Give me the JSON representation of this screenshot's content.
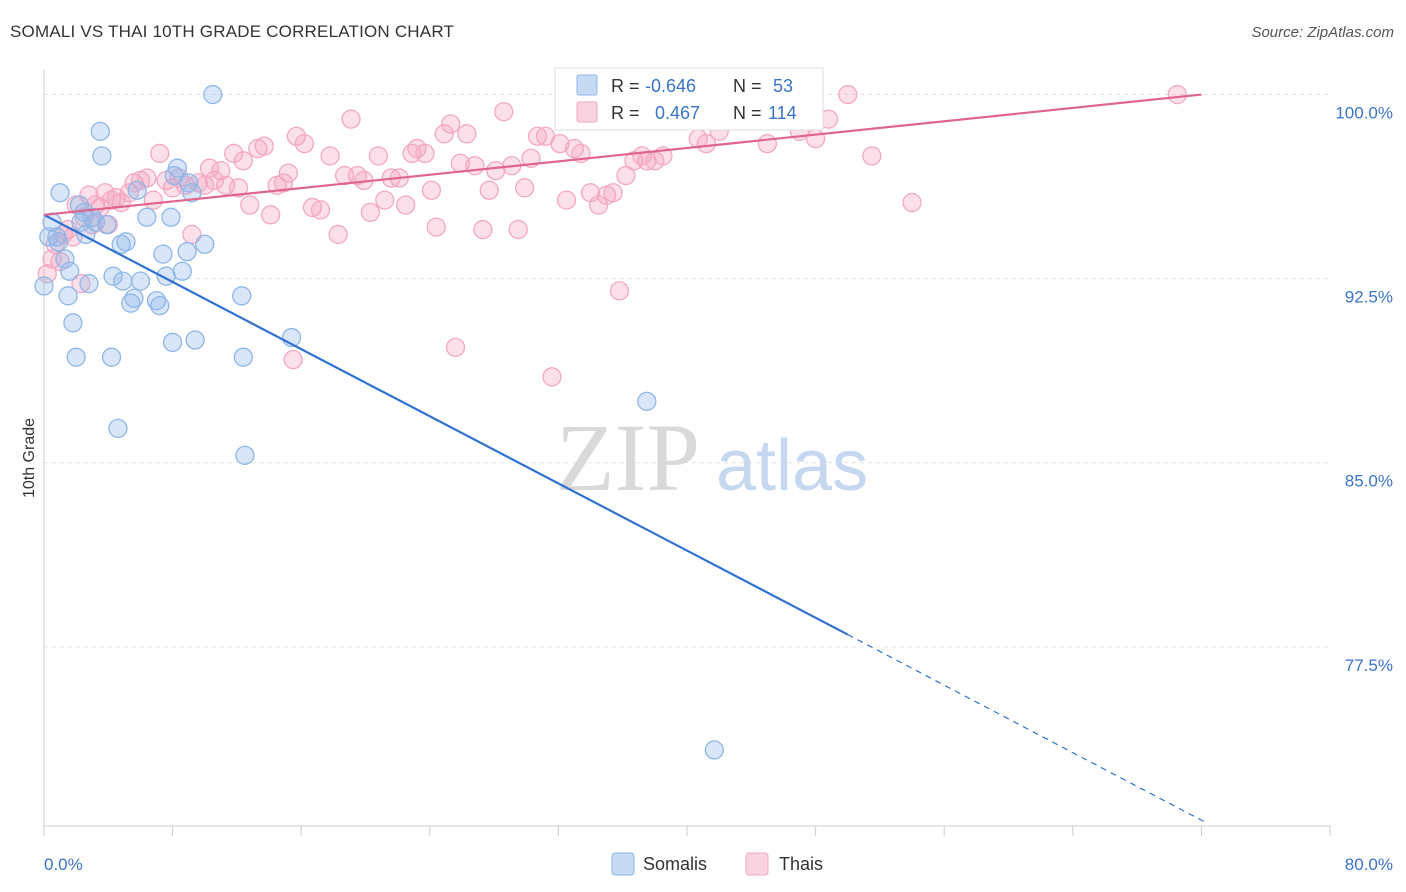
{
  "title": "SOMALI VS THAI 10TH GRADE CORRELATION CHART",
  "source": "Source: ZipAtlas.com",
  "watermark": {
    "part1": "ZIP",
    "part2": "atlas"
  },
  "legend_top": [
    {
      "r_label": "R =",
      "r_value": "-0.646",
      "n_label": "N =",
      "n_value": "53",
      "color": "#8fb6e8"
    },
    {
      "r_label": "R =",
      "r_value": "0.467",
      "n_label": "N =",
      "n_value": "114",
      "color": "#f4a7c1"
    }
  ],
  "legend_bottom": [
    {
      "label": "Somalis",
      "color": "#8fb6e8"
    },
    {
      "label": "Thais",
      "color": "#f4a7c1"
    }
  ],
  "chart_data": {
    "type": "scatter",
    "xlabel": "",
    "ylabel": "10th Grade",
    "xlim": [
      0,
      80
    ],
    "ylim": [
      70.2,
      101.0
    ],
    "x_tick_labels": [
      "0.0%",
      "80.0%"
    ],
    "y_ticks": [
      100.0,
      92.5,
      85.0,
      77.5
    ],
    "y_tick_labels": [
      "100.0%",
      "92.5%",
      "85.0%",
      "77.5%"
    ],
    "grid": "horizontal dashed",
    "series": [
      {
        "name": "Somalis",
        "color": "#8fb6e8",
        "line_color": "#2f72d0",
        "trend": {
          "x0": 0,
          "y0": 95.1,
          "x1": 50,
          "y1": 78.0,
          "dash_to_x": 72.4,
          "dash_to_y": 70.3
        },
        "points": [
          [
            0.0,
            92.2
          ],
          [
            0.3,
            94.2
          ],
          [
            0.5,
            94.8
          ],
          [
            0.8,
            94.2
          ],
          [
            1.0,
            96.0
          ],
          [
            1.3,
            93.3
          ],
          [
            1.5,
            91.8
          ],
          [
            1.8,
            90.7
          ],
          [
            2.0,
            89.3
          ],
          [
            2.2,
            95.5
          ],
          [
            2.3,
            94.8
          ],
          [
            2.5,
            95.2
          ],
          [
            2.6,
            94.3
          ],
          [
            2.8,
            92.3
          ],
          [
            3.0,
            95.0
          ],
          [
            3.2,
            94.8
          ],
          [
            3.5,
            98.5
          ],
          [
            3.6,
            97.5
          ],
          [
            3.9,
            94.7
          ],
          [
            4.2,
            89.3
          ],
          [
            4.3,
            92.6
          ],
          [
            4.6,
            86.4
          ],
          [
            4.8,
            93.9
          ],
          [
            4.9,
            92.4
          ],
          [
            5.1,
            94.0
          ],
          [
            5.4,
            91.5
          ],
          [
            5.6,
            91.7
          ],
          [
            5.8,
            96.1
          ],
          [
            6.0,
            92.4
          ],
          [
            6.4,
            95.0
          ],
          [
            7.0,
            91.6
          ],
          [
            7.2,
            91.4
          ],
          [
            7.4,
            93.5
          ],
          [
            7.6,
            92.6
          ],
          [
            7.9,
            95.0
          ],
          [
            8.0,
            89.9
          ],
          [
            8.1,
            96.7
          ],
          [
            8.3,
            97.0
          ],
          [
            8.6,
            92.8
          ],
          [
            8.9,
            93.6
          ],
          [
            9.0,
            96.4
          ],
          [
            9.2,
            96.0
          ],
          [
            9.4,
            90.0
          ],
          [
            10.0,
            93.9
          ],
          [
            10.5,
            100.0
          ],
          [
            12.3,
            91.8
          ],
          [
            12.4,
            89.3
          ],
          [
            12.5,
            85.3
          ],
          [
            15.4,
            90.1
          ],
          [
            37.5,
            87.5
          ],
          [
            41.7,
            73.3
          ],
          [
            1.6,
            92.8
          ],
          [
            0.9,
            94.0
          ]
        ]
      },
      {
        "name": "Thais",
        "color": "#f4a7c1",
        "line_color": "#e0658e",
        "trend": {
          "x0": 0,
          "y0": 95.1,
          "x1": 72.0,
          "y1": 100.0
        },
        "points": [
          [
            0.2,
            92.7
          ],
          [
            0.5,
            93.3
          ],
          [
            0.7,
            93.9
          ],
          [
            1.0,
            93.2
          ],
          [
            1.2,
            94.3
          ],
          [
            1.5,
            94.5
          ],
          [
            1.8,
            94.2
          ],
          [
            2.0,
            95.5
          ],
          [
            2.3,
            92.3
          ],
          [
            2.5,
            95.0
          ],
          [
            2.8,
            95.9
          ],
          [
            3.0,
            94.7
          ],
          [
            3.2,
            95.5
          ],
          [
            3.5,
            95.4
          ],
          [
            3.8,
            96.0
          ],
          [
            4.0,
            94.7
          ],
          [
            4.2,
            95.7
          ],
          [
            4.5,
            95.8
          ],
          [
            4.8,
            95.6
          ],
          [
            5.3,
            96.0
          ],
          [
            5.6,
            96.4
          ],
          [
            6.0,
            96.5
          ],
          [
            6.4,
            96.6
          ],
          [
            6.8,
            95.7
          ],
          [
            7.2,
            97.6
          ],
          [
            7.6,
            96.5
          ],
          [
            8.0,
            96.2
          ],
          [
            8.4,
            96.6
          ],
          [
            8.8,
            96.3
          ],
          [
            9.2,
            94.3
          ],
          [
            9.6,
            96.4
          ],
          [
            10.0,
            96.3
          ],
          [
            10.3,
            97.0
          ],
          [
            10.6,
            96.5
          ],
          [
            11.0,
            96.9
          ],
          [
            11.3,
            96.3
          ],
          [
            11.8,
            97.6
          ],
          [
            12.1,
            96.2
          ],
          [
            12.4,
            97.3
          ],
          [
            12.8,
            95.5
          ],
          [
            13.3,
            97.8
          ],
          [
            13.7,
            97.9
          ],
          [
            14.1,
            95.1
          ],
          [
            14.5,
            96.3
          ],
          [
            14.9,
            96.4
          ],
          [
            15.2,
            96.8
          ],
          [
            15.5,
            89.2
          ],
          [
            15.7,
            98.3
          ],
          [
            16.2,
            98.0
          ],
          [
            16.7,
            95.4
          ],
          [
            17.2,
            95.3
          ],
          [
            17.8,
            97.5
          ],
          [
            18.3,
            94.3
          ],
          [
            18.7,
            96.7
          ],
          [
            19.1,
            99.0
          ],
          [
            19.5,
            96.7
          ],
          [
            19.9,
            96.5
          ],
          [
            20.3,
            95.2
          ],
          [
            20.8,
            97.5
          ],
          [
            21.2,
            95.7
          ],
          [
            21.6,
            96.6
          ],
          [
            22.1,
            96.6
          ],
          [
            22.5,
            95.5
          ],
          [
            22.9,
            97.6
          ],
          [
            23.2,
            97.8
          ],
          [
            23.7,
            97.6
          ],
          [
            24.1,
            96.1
          ],
          [
            24.4,
            94.6
          ],
          [
            24.9,
            98.4
          ],
          [
            25.3,
            98.8
          ],
          [
            25.6,
            89.7
          ],
          [
            25.9,
            97.2
          ],
          [
            26.3,
            98.4
          ],
          [
            26.8,
            97.1
          ],
          [
            27.3,
            94.5
          ],
          [
            27.7,
            96.1
          ],
          [
            28.1,
            96.9
          ],
          [
            28.6,
            99.3
          ],
          [
            29.1,
            97.1
          ],
          [
            29.5,
            94.5
          ],
          [
            29.9,
            96.2
          ],
          [
            30.3,
            97.4
          ],
          [
            30.7,
            98.3
          ],
          [
            31.2,
            98.3
          ],
          [
            31.6,
            88.5
          ],
          [
            32.1,
            98.0
          ],
          [
            32.5,
            95.7
          ],
          [
            33.0,
            97.8
          ],
          [
            33.4,
            97.6
          ],
          [
            34.0,
            96.0
          ],
          [
            34.5,
            95.5
          ],
          [
            35.0,
            95.9
          ],
          [
            35.4,
            96.0
          ],
          [
            35.8,
            92.0
          ],
          [
            36.2,
            96.7
          ],
          [
            36.7,
            97.3
          ],
          [
            37.2,
            97.5
          ],
          [
            37.5,
            97.3
          ],
          [
            38.0,
            97.3
          ],
          [
            38.5,
            97.5
          ],
          [
            39.0,
            100.0
          ],
          [
            39.6,
            100.0
          ],
          [
            40.2,
            99.2
          ],
          [
            40.7,
            98.2
          ],
          [
            41.2,
            98.0
          ],
          [
            42.0,
            98.5
          ],
          [
            42.8,
            99.0
          ],
          [
            43.5,
            99.0
          ],
          [
            45.0,
            98.0
          ],
          [
            46.0,
            99.3
          ],
          [
            47.0,
            98.5
          ],
          [
            48.0,
            98.2
          ],
          [
            48.8,
            99.0
          ],
          [
            50.0,
            100.0
          ],
          [
            51.5,
            97.5
          ],
          [
            54.0,
            95.6
          ],
          [
            70.5,
            100.0
          ]
        ]
      }
    ]
  }
}
